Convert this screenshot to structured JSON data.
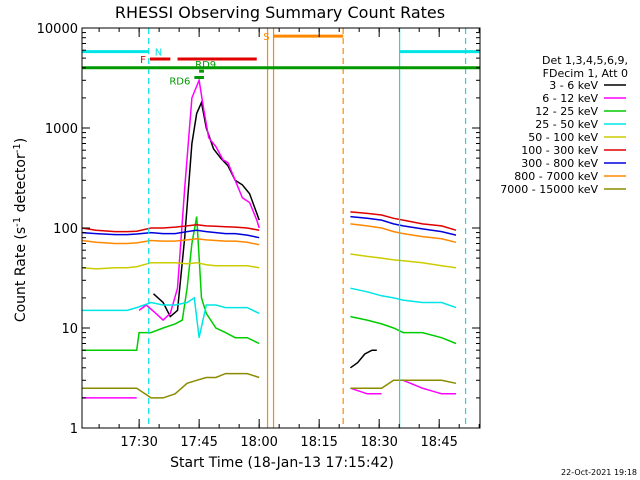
{
  "chart_data": {
    "type": "line",
    "title": "RHESSI Observing Summary Count Rates",
    "xlabel": "Start Time (18-Jan-13 17:15:42)",
    "ylabel": "Count Rate (s",
    "ylabel_sup": "-1",
    "ylabel_tail": " detector",
    "ylabel_sup2": "-1",
    "ylabel_end": ")",
    "y_scale": "log",
    "ylim": [
      1,
      10000
    ],
    "xlim": [
      17.262,
      18.92
    ],
    "y_ticks": [
      {
        "value": 1,
        "label": "1"
      },
      {
        "value": 10,
        "label": "10"
      },
      {
        "value": 100,
        "label": "100"
      },
      {
        "value": 1000,
        "label": "1000"
      },
      {
        "value": 10000,
        "label": "10000"
      }
    ],
    "x_ticks": [
      {
        "value": 17.5,
        "label": "17:30"
      },
      {
        "value": 17.75,
        "label": "17:45"
      },
      {
        "value": 18.0,
        "label": "18:00"
      },
      {
        "value": 18.25,
        "label": "18:15"
      },
      {
        "value": 18.5,
        "label": "18:30"
      },
      {
        "value": 18.75,
        "label": "18:45"
      }
    ],
    "grid": false,
    "legend_header": [
      "Det 1,3,4,5,6,9,",
      "FDecim 1, Att 0"
    ],
    "series": [
      {
        "name": "3 - 6 keV",
        "color": "#000000",
        "points": [
          [
            17.262,
            0
          ],
          [
            17.32,
            0
          ],
          [
            17.4,
            0
          ],
          [
            17.48,
            0
          ],
          [
            17.56,
            22
          ],
          [
            17.6,
            18
          ],
          [
            17.63,
            13
          ],
          [
            17.66,
            15
          ],
          [
            17.69,
            80
          ],
          [
            17.72,
            700
          ],
          [
            17.74,
            1400
          ],
          [
            17.76,
            1800
          ],
          [
            17.78,
            1000
          ],
          [
            17.81,
            620
          ],
          [
            17.84,
            500
          ],
          [
            17.87,
            420
          ],
          [
            17.9,
            300
          ],
          [
            17.93,
            270
          ],
          [
            17.96,
            220
          ],
          [
            17.99,
            140
          ],
          [
            18.0,
            120
          ],
          null,
          [
            18.38,
            4
          ],
          [
            18.41,
            4.5
          ],
          [
            18.44,
            5.5
          ],
          [
            18.47,
            6
          ],
          [
            18.49,
            6
          ]
        ]
      },
      {
        "name": "6 - 12 keV",
        "color": "#ff00ff",
        "points": [
          [
            17.262,
            2
          ],
          [
            17.3,
            2
          ],
          [
            17.35,
            2
          ],
          [
            17.4,
            2
          ],
          [
            17.45,
            2
          ],
          [
            17.49,
            2
          ],
          null,
          [
            17.5,
            15
          ],
          [
            17.53,
            17
          ],
          [
            17.57,
            14
          ],
          [
            17.6,
            12
          ],
          [
            17.63,
            14
          ],
          [
            17.66,
            25
          ],
          [
            17.69,
            250
          ],
          [
            17.72,
            2000
          ],
          [
            17.75,
            3000
          ],
          [
            17.77,
            1500
          ],
          [
            17.79,
            800
          ],
          [
            17.82,
            650
          ],
          [
            17.85,
            480
          ],
          [
            17.87,
            450
          ],
          [
            17.9,
            300
          ],
          [
            17.93,
            200
          ],
          [
            17.96,
            180
          ],
          [
            17.99,
            120
          ],
          [
            18.0,
            100
          ],
          null,
          [
            18.38,
            2.5
          ],
          [
            18.45,
            2.2
          ],
          [
            18.51,
            2.2
          ],
          null,
          [
            18.6,
            3
          ],
          [
            18.68,
            2.5
          ],
          [
            18.76,
            2.2
          ],
          [
            18.82,
            2.2
          ]
        ]
      },
      {
        "name": "12 - 25 keV",
        "color": "#00cc00",
        "points": [
          [
            17.262,
            6
          ],
          [
            17.32,
            6
          ],
          [
            17.4,
            6
          ],
          [
            17.46,
            6
          ],
          [
            17.49,
            6
          ],
          [
            17.5,
            9
          ],
          [
            17.55,
            9
          ],
          [
            17.6,
            10
          ],
          [
            17.65,
            11
          ],
          [
            17.68,
            12
          ],
          [
            17.7,
            25
          ],
          [
            17.72,
            70
          ],
          [
            17.74,
            130
          ],
          [
            17.76,
            20
          ],
          [
            17.78,
            14
          ],
          [
            17.82,
            10
          ],
          [
            17.86,
            9
          ],
          [
            17.9,
            8
          ],
          [
            17.95,
            8
          ],
          [
            18.0,
            7
          ],
          null,
          [
            18.38,
            13
          ],
          [
            18.45,
            12
          ],
          [
            18.51,
            11
          ],
          [
            18.56,
            10
          ],
          [
            18.6,
            9
          ],
          [
            18.68,
            9
          ],
          [
            18.76,
            8
          ],
          [
            18.82,
            7
          ]
        ]
      },
      {
        "name": "25 - 50 keV",
        "color": "#00e5e5",
        "points": [
          [
            17.262,
            15
          ],
          [
            17.32,
            15
          ],
          [
            17.4,
            15
          ],
          [
            17.45,
            15
          ],
          [
            17.49,
            16
          ],
          [
            17.55,
            18
          ],
          [
            17.6,
            17
          ],
          [
            17.65,
            17
          ],
          [
            17.7,
            18
          ],
          [
            17.73,
            20
          ],
          [
            17.75,
            8
          ],
          [
            17.78,
            17
          ],
          [
            17.82,
            17
          ],
          [
            17.86,
            16
          ],
          [
            17.9,
            16
          ],
          [
            17.95,
            16
          ],
          [
            18.0,
            14
          ],
          null,
          [
            18.38,
            25
          ],
          [
            18.45,
            23
          ],
          [
            18.51,
            21
          ],
          [
            18.56,
            20
          ],
          [
            18.6,
            19
          ],
          [
            18.68,
            18
          ],
          [
            18.76,
            18
          ],
          [
            18.82,
            16
          ]
        ]
      },
      {
        "name": "50 - 100 keV",
        "color": "#cccc00",
        "points": [
          [
            17.262,
            40
          ],
          [
            17.32,
            39
          ],
          [
            17.4,
            40
          ],
          [
            17.45,
            40
          ],
          [
            17.49,
            41
          ],
          [
            17.55,
            45
          ],
          [
            17.6,
            45
          ],
          [
            17.65,
            45
          ],
          [
            17.7,
            44
          ],
          [
            17.74,
            45
          ],
          [
            17.78,
            43
          ],
          [
            17.82,
            42
          ],
          [
            17.86,
            42
          ],
          [
            17.9,
            42
          ],
          [
            17.95,
            42
          ],
          [
            18.0,
            40
          ],
          null,
          [
            18.38,
            55
          ],
          [
            18.45,
            52
          ],
          [
            18.51,
            50
          ],
          [
            18.56,
            48
          ],
          [
            18.6,
            47
          ],
          [
            18.68,
            45
          ],
          [
            18.76,
            42
          ],
          [
            18.82,
            40
          ]
        ]
      },
      {
        "name": "100 - 300 keV",
        "color": "#e00000",
        "points": [
          [
            17.262,
            100
          ],
          [
            17.32,
            95
          ],
          [
            17.4,
            92
          ],
          [
            17.45,
            92
          ],
          [
            17.49,
            93
          ],
          [
            17.55,
            100
          ],
          [
            17.6,
            100
          ],
          [
            17.65,
            102
          ],
          [
            17.7,
            105
          ],
          [
            17.74,
            108
          ],
          [
            17.78,
            105
          ],
          [
            17.82,
            104
          ],
          [
            17.86,
            103
          ],
          [
            17.9,
            102
          ],
          [
            17.95,
            100
          ],
          [
            18.0,
            95
          ],
          null,
          [
            18.38,
            145
          ],
          [
            18.45,
            140
          ],
          [
            18.51,
            135
          ],
          [
            18.56,
            125
          ],
          [
            18.6,
            120
          ],
          [
            18.68,
            110
          ],
          [
            18.76,
            105
          ],
          [
            18.82,
            95
          ]
        ]
      },
      {
        "name": "300 - 800 keV",
        "color": "#0000dd",
        "points": [
          [
            17.262,
            90
          ],
          [
            17.32,
            88
          ],
          [
            17.4,
            86
          ],
          [
            17.45,
            86
          ],
          [
            17.49,
            87
          ],
          [
            17.55,
            90
          ],
          [
            17.6,
            88
          ],
          [
            17.65,
            88
          ],
          [
            17.7,
            92
          ],
          [
            17.74,
            95
          ],
          [
            17.78,
            92
          ],
          [
            17.82,
            90
          ],
          [
            17.86,
            88
          ],
          [
            17.9,
            88
          ],
          [
            17.95,
            85
          ],
          [
            18.0,
            80
          ],
          null,
          [
            18.38,
            130
          ],
          [
            18.45,
            125
          ],
          [
            18.51,
            120
          ],
          [
            18.56,
            110
          ],
          [
            18.6,
            105
          ],
          [
            18.68,
            98
          ],
          [
            18.76,
            92
          ],
          [
            18.82,
            85
          ]
        ]
      },
      {
        "name": "800 - 7000 keV",
        "color": "#ff8800",
        "points": [
          [
            17.262,
            75
          ],
          [
            17.32,
            72
          ],
          [
            17.4,
            70
          ],
          [
            17.45,
            70
          ],
          [
            17.49,
            71
          ],
          [
            17.55,
            75
          ],
          [
            17.6,
            74
          ],
          [
            17.65,
            74
          ],
          [
            17.7,
            76
          ],
          [
            17.74,
            78
          ],
          [
            17.78,
            76
          ],
          [
            17.82,
            75
          ],
          [
            17.86,
            74
          ],
          [
            17.9,
            74
          ],
          [
            17.95,
            72
          ],
          [
            18.0,
            68
          ],
          null,
          [
            18.38,
            110
          ],
          [
            18.45,
            105
          ],
          [
            18.51,
            100
          ],
          [
            18.56,
            92
          ],
          [
            18.6,
            88
          ],
          [
            18.68,
            82
          ],
          [
            18.76,
            78
          ],
          [
            18.82,
            72
          ]
        ]
      },
      {
        "name": "7000 - 15000 keV",
        "color": "#8b8b00",
        "points": [
          [
            17.262,
            2.5
          ],
          [
            17.3,
            2.5
          ],
          [
            17.35,
            2.5
          ],
          [
            17.4,
            2.5
          ],
          [
            17.45,
            2.5
          ],
          [
            17.49,
            2.5
          ],
          [
            17.55,
            2
          ],
          [
            17.6,
            2
          ],
          [
            17.65,
            2.2
          ],
          [
            17.7,
            2.8
          ],
          [
            17.74,
            3
          ],
          [
            17.78,
            3.2
          ],
          [
            17.82,
            3.2
          ],
          [
            17.86,
            3.5
          ],
          [
            17.9,
            3.5
          ],
          [
            17.95,
            3.5
          ],
          [
            18.0,
            3.2
          ],
          null,
          [
            18.38,
            2.5
          ],
          [
            18.45,
            2.5
          ],
          [
            18.51,
            2.5
          ],
          [
            18.56,
            3
          ],
          [
            18.6,
            3
          ],
          [
            18.68,
            3
          ],
          [
            18.76,
            3
          ],
          [
            18.82,
            2.8
          ]
        ]
      }
    ],
    "flags": [
      {
        "label": "N",
        "color": "#00e5e5",
        "y": 5800,
        "segments": [
          [
            17.262,
            17.54
          ],
          [
            18.585,
            18.92
          ]
        ]
      },
      {
        "label": "F",
        "color": "#e00000",
        "y": 4900,
        "segments": [
          [
            17.545,
            17.63
          ],
          [
            17.66,
            17.99
          ]
        ]
      },
      {
        "label": "",
        "color": "#009900",
        "y": 4000,
        "segments": [
          [
            17.262,
            18.92
          ]
        ]
      },
      {
        "label": "RD9",
        "color": "#009900",
        "y": 3700,
        "segments": [
          [
            17.75,
            17.77
          ]
        ]
      },
      {
        "label": "RD6",
        "color": "#009900",
        "y": 3200,
        "segments": [
          [
            17.73,
            17.77
          ]
        ]
      },
      {
        "label": "S",
        "color": "#ff8800",
        "y": 8300,
        "segments": [
          [
            18.06,
            18.35
          ]
        ]
      }
    ],
    "vertical_markers": [
      {
        "x": 17.54,
        "color": "#00e5e5",
        "style": "dash"
      },
      {
        "x": 18.035,
        "color": "#ff8800",
        "style": "solid"
      },
      {
        "x": 18.06,
        "color": "#ff8800",
        "style": "solid"
      },
      {
        "x": 18.35,
        "color": "#ff8800",
        "style": "dash"
      },
      {
        "x": 18.585,
        "color": "#00e5e5",
        "style": "solid"
      },
      {
        "x": 18.86,
        "color": "#00e5e5",
        "style": "dash"
      }
    ],
    "footer_date": "22-Oct-2021 19:18"
  }
}
